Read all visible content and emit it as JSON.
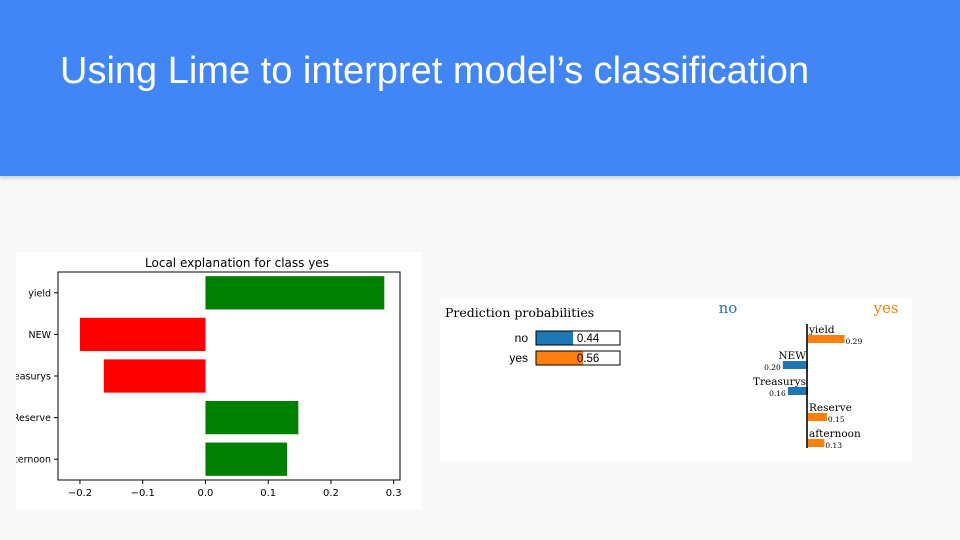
{
  "slide": {
    "title": "Using Lime to interpret model’s classification",
    "header_color": "#4285f4"
  },
  "chart_data": [
    {
      "type": "bar",
      "orientation": "horizontal",
      "title": "Local explanation for class yes",
      "categories": [
        "yield",
        "NEW",
        "Treasurys",
        "Reserve",
        "afternoon"
      ],
      "values": [
        0.285,
        -0.2,
        -0.162,
        0.148,
        0.13
      ],
      "xlim": [
        -0.235,
        0.31
      ],
      "xticks": [
        "-0.2",
        "-0.1",
        "0.0",
        "0.1",
        "0.2",
        "0.3"
      ],
      "xtick_values": [
        -0.2,
        -0.1,
        0.0,
        0.1,
        0.2,
        0.3
      ],
      "colors": {
        "positive": "#008000",
        "negative": "#ff0000"
      },
      "grid": false
    },
    {
      "type": "bar",
      "orientation": "horizontal",
      "title": "Prediction probabilities",
      "categories": [
        "no",
        "yes"
      ],
      "values": [
        0.44,
        0.56
      ],
      "value_labels": [
        "0.44",
        "0.56"
      ],
      "xlim": [
        0,
        1
      ],
      "colors": {
        "no": "#1f77b4",
        "yes": "#ff7f0e"
      }
    },
    {
      "type": "bar",
      "orientation": "horizontal",
      "class_labels": {
        "negative": "no",
        "positive": "yes"
      },
      "categories": [
        "yield",
        "NEW",
        "Treasurys",
        "Reserve",
        "afternoon"
      ],
      "values": [
        0.29,
        -0.2,
        -0.16,
        0.15,
        0.13
      ],
      "value_labels": [
        "0.29",
        "0.20",
        "0.16",
        "0.15",
        "0.13"
      ],
      "colors": {
        "negative": "#1f77b4",
        "positive": "#ff7f0e"
      }
    }
  ]
}
